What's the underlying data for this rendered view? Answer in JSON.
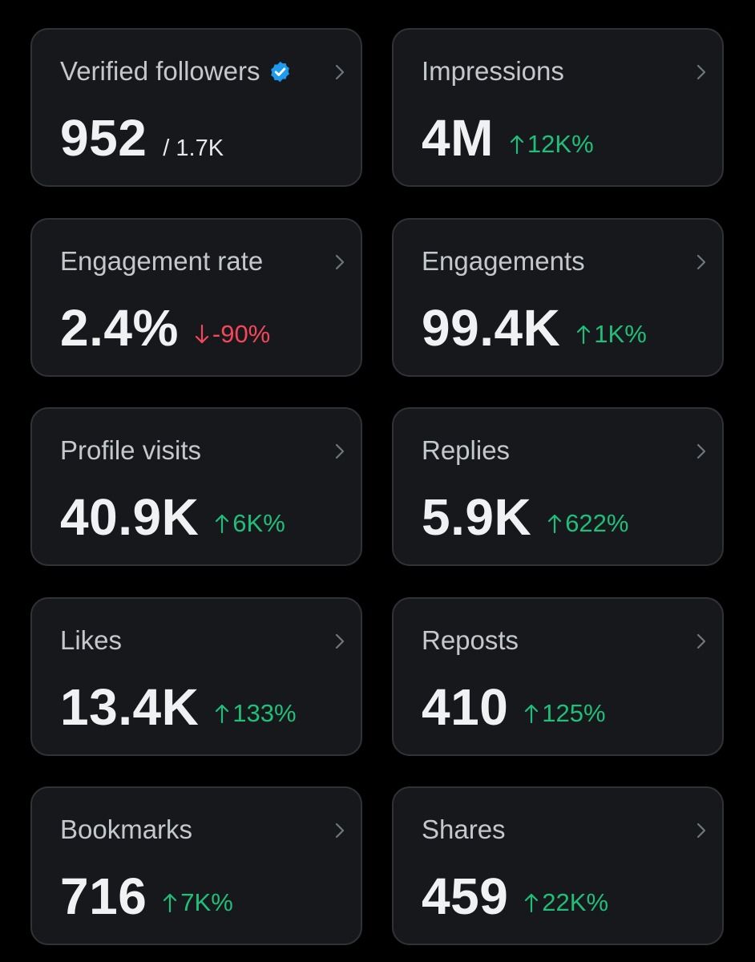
{
  "colors": {
    "background": "#000000",
    "card": "#16181c",
    "border": "#2f3336",
    "verified": "#1d9bf0",
    "up": "#1fbf7a",
    "down": "#f4475a"
  },
  "cards": [
    {
      "label": "Verified followers",
      "value": "952",
      "suffix": "/ 1.7K",
      "verified": true
    },
    {
      "label": "Impressions",
      "value": "4M",
      "change": "12K%",
      "trend": "up"
    },
    {
      "label": "Engagement rate",
      "value": "2.4%",
      "change": "-90%",
      "trend": "down"
    },
    {
      "label": "Engagements",
      "value": "99.4K",
      "change": "1K%",
      "trend": "up"
    },
    {
      "label": "Profile visits",
      "value": "40.9K",
      "change": "6K%",
      "trend": "up"
    },
    {
      "label": "Replies",
      "value": "5.9K",
      "change": "622%",
      "trend": "up"
    },
    {
      "label": "Likes",
      "value": "13.4K",
      "change": "133%",
      "trend": "up"
    },
    {
      "label": "Reposts",
      "value": "410",
      "change": "125%",
      "trend": "up"
    },
    {
      "label": "Bookmarks",
      "value": "716",
      "change": "7K%",
      "trend": "up"
    },
    {
      "label": "Shares",
      "value": "459",
      "change": "22K%",
      "trend": "up"
    }
  ]
}
